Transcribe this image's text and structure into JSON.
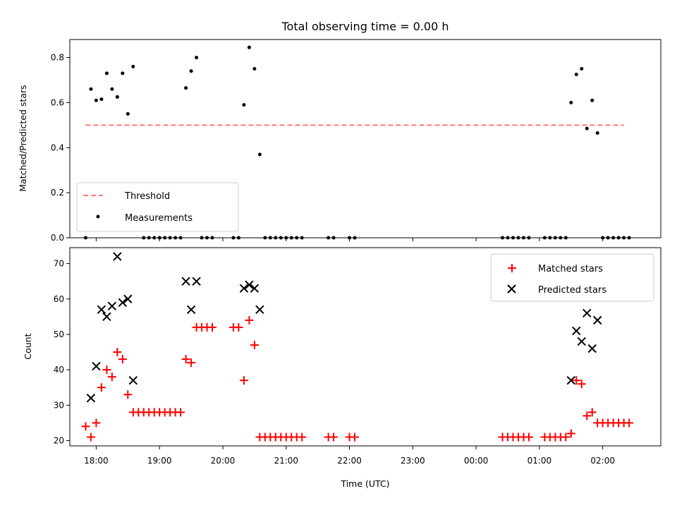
{
  "chart_data": [
    {
      "type": "scatter",
      "title": "Total observing time = 0.00 h",
      "xlabel": "",
      "ylabel": "Matched/Predicted stars",
      "xlim": [
        "17:35",
        "02:55"
      ],
      "ylim": [
        0,
        0.88
      ],
      "yticks": [
        "0.0",
        "0.2",
        "0.4",
        "0.6",
        "0.8"
      ],
      "threshold": {
        "name": "Threshold",
        "value": 0.5,
        "x_range": [
          "17:50",
          "02:20"
        ],
        "color": "#ff7777"
      },
      "series": [
        {
          "name": "Measurements",
          "color": "#000000",
          "points": [
            [
              "17:50",
              0.0
            ],
            [
              "17:55",
              0.66
            ],
            [
              "18:00",
              0.61
            ],
            [
              "18:05",
              0.615
            ],
            [
              "18:10",
              0.73
            ],
            [
              "18:15",
              0.66
            ],
            [
              "18:20",
              0.625
            ],
            [
              "18:25",
              0.73
            ],
            [
              "18:30",
              0.55
            ],
            [
              "18:35",
              0.76
            ],
            [
              "18:45",
              0.0
            ],
            [
              "18:50",
              0.0
            ],
            [
              "18:55",
              0.0
            ],
            [
              "19:00",
              0.0
            ],
            [
              "19:05",
              0.0
            ],
            [
              "19:10",
              0.0
            ],
            [
              "19:15",
              0.0
            ],
            [
              "19:20",
              0.0
            ],
            [
              "19:25",
              0.665
            ],
            [
              "19:30",
              0.74
            ],
            [
              "19:35",
              0.8
            ],
            [
              "19:40",
              0.0
            ],
            [
              "19:45",
              0.0
            ],
            [
              "19:50",
              0.0
            ],
            [
              "20:10",
              0.0
            ],
            [
              "20:15",
              0.0
            ],
            [
              "20:20",
              0.59
            ],
            [
              "20:25",
              0.845
            ],
            [
              "20:30",
              0.75
            ],
            [
              "20:35",
              0.37
            ],
            [
              "20:40",
              0.0
            ],
            [
              "20:45",
              0.0
            ],
            [
              "20:50",
              0.0
            ],
            [
              "20:55",
              0.0
            ],
            [
              "21:00",
              0.0
            ],
            [
              "21:05",
              0.0
            ],
            [
              "21:10",
              0.0
            ],
            [
              "21:15",
              0.0
            ],
            [
              "21:40",
              0.0
            ],
            [
              "21:45",
              0.0
            ],
            [
              "22:00",
              0.0
            ],
            [
              "22:05",
              0.0
            ],
            [
              "00:25",
              0.0
            ],
            [
              "00:30",
              0.0
            ],
            [
              "00:35",
              0.0
            ],
            [
              "00:40",
              0.0
            ],
            [
              "00:45",
              0.0
            ],
            [
              "00:50",
              0.0
            ],
            [
              "01:05",
              0.0
            ],
            [
              "01:10",
              0.0
            ],
            [
              "01:15",
              0.0
            ],
            [
              "01:20",
              0.0
            ],
            [
              "01:25",
              0.0
            ],
            [
              "01:30",
              0.6
            ],
            [
              "01:35",
              0.725
            ],
            [
              "01:40",
              0.75
            ],
            [
              "01:45",
              0.485
            ],
            [
              "01:50",
              0.61
            ],
            [
              "01:55",
              0.465
            ],
            [
              "02:00",
              0.0
            ],
            [
              "02:05",
              0.0
            ],
            [
              "02:10",
              0.0
            ],
            [
              "02:15",
              0.0
            ],
            [
              "02:20",
              0.0
            ],
            [
              "02:25",
              0.0
            ]
          ]
        }
      ],
      "legend": [
        "Threshold",
        "Measurements"
      ],
      "legend_position": "lower-left"
    },
    {
      "type": "scatter",
      "title": "",
      "xlabel": "Time (UTC)",
      "ylabel": "Count",
      "xlim": [
        "17:35",
        "02:55"
      ],
      "ylim": [
        18.5,
        74.5
      ],
      "yticks": [
        "20",
        "30",
        "40",
        "50",
        "60",
        "70"
      ],
      "xticks": [
        "18:00",
        "19:00",
        "20:00",
        "21:00",
        "22:00",
        "23:00",
        "00:00",
        "01:00",
        "02:00"
      ],
      "series": [
        {
          "name": "Matched stars",
          "color": "#ff0000",
          "marker": "+",
          "points": [
            [
              "17:50",
              24
            ],
            [
              "17:55",
              21
            ],
            [
              "18:00",
              25
            ],
            [
              "18:05",
              35
            ],
            [
              "18:10",
              40
            ],
            [
              "18:15",
              38
            ],
            [
              "18:20",
              45
            ],
            [
              "18:25",
              43
            ],
            [
              "18:30",
              33
            ],
            [
              "18:35",
              28
            ],
            [
              "18:40",
              28
            ],
            [
              "18:45",
              28
            ],
            [
              "18:50",
              28
            ],
            [
              "18:55",
              28
            ],
            [
              "19:00",
              28
            ],
            [
              "19:05",
              28
            ],
            [
              "19:10",
              28
            ],
            [
              "19:15",
              28
            ],
            [
              "19:20",
              28
            ],
            [
              "19:25",
              43
            ],
            [
              "19:30",
              42
            ],
            [
              "19:35",
              52
            ],
            [
              "19:40",
              52
            ],
            [
              "19:45",
              52
            ],
            [
              "19:50",
              52
            ],
            [
              "20:10",
              52
            ],
            [
              "20:15",
              52
            ],
            [
              "20:20",
              37
            ],
            [
              "20:25",
              54
            ],
            [
              "20:30",
              47
            ],
            [
              "20:35",
              21
            ],
            [
              "20:40",
              21
            ],
            [
              "20:45",
              21
            ],
            [
              "20:50",
              21
            ],
            [
              "20:55",
              21
            ],
            [
              "21:00",
              21
            ],
            [
              "21:05",
              21
            ],
            [
              "21:10",
              21
            ],
            [
              "21:15",
              21
            ],
            [
              "21:40",
              21
            ],
            [
              "21:45",
              21
            ],
            [
              "22:00",
              21
            ],
            [
              "22:05",
              21
            ],
            [
              "00:25",
              21
            ],
            [
              "00:30",
              21
            ],
            [
              "00:35",
              21
            ],
            [
              "00:40",
              21
            ],
            [
              "00:45",
              21
            ],
            [
              "00:50",
              21
            ],
            [
              "01:05",
              21
            ],
            [
              "01:10",
              21
            ],
            [
              "01:15",
              21
            ],
            [
              "01:20",
              21
            ],
            [
              "01:25",
              21
            ],
            [
              "01:30",
              22
            ],
            [
              "01:35",
              37
            ],
            [
              "01:40",
              36
            ],
            [
              "01:45",
              27
            ],
            [
              "01:50",
              28
            ],
            [
              "01:55",
              25
            ],
            [
              "02:00",
              25
            ],
            [
              "02:05",
              25
            ],
            [
              "02:10",
              25
            ],
            [
              "02:15",
              25
            ],
            [
              "02:20",
              25
            ],
            [
              "02:25",
              25
            ]
          ]
        },
        {
          "name": "Predicted stars",
          "color": "#000000",
          "marker": "x",
          "points": [
            [
              "17:55",
              32
            ],
            [
              "18:00",
              41
            ],
            [
              "18:05",
              57
            ],
            [
              "18:10",
              55
            ],
            [
              "18:15",
              58
            ],
            [
              "18:20",
              72
            ],
            [
              "18:25",
              59
            ],
            [
              "18:30",
              60
            ],
            [
              "18:35",
              37
            ],
            [
              "19:25",
              65
            ],
            [
              "19:30",
              57
            ],
            [
              "19:35",
              65
            ],
            [
              "20:20",
              63
            ],
            [
              "20:25",
              64
            ],
            [
              "20:30",
              63
            ],
            [
              "20:35",
              57
            ],
            [
              "01:30",
              37
            ],
            [
              "01:35",
              51
            ],
            [
              "01:40",
              48
            ],
            [
              "01:45",
              56
            ],
            [
              "01:50",
              46
            ],
            [
              "01:55",
              54
            ]
          ]
        }
      ],
      "legend": [
        "Matched stars",
        "Predicted stars"
      ],
      "legend_position": "upper-right"
    }
  ]
}
